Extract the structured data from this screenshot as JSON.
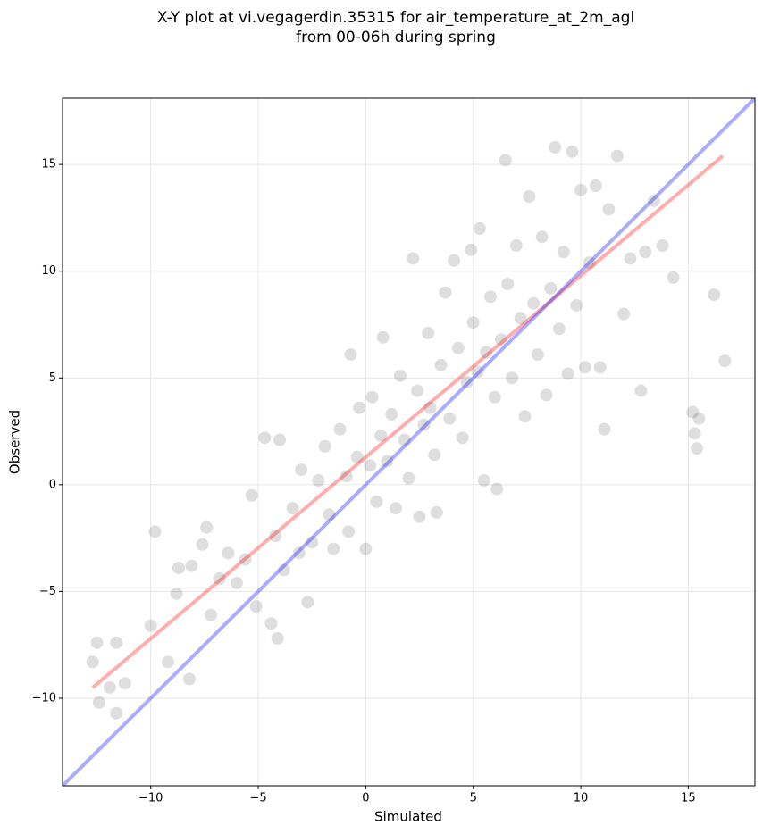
{
  "chart_data": {
    "type": "scatter",
    "title": "X-Y plot at vi.vegagerdin.35315 for air_temperature_at_2m_agl",
    "subtitle": "from 00-06h during spring",
    "x_label": "Simulated",
    "y_label": "Observed",
    "xlim": [
      -14.1,
      18.1
    ],
    "ylim": [
      -14.1,
      18.1
    ],
    "xticks": [
      {
        "value": -10,
        "label": "−10"
      },
      {
        "value": -5,
        "label": "−5"
      },
      0,
      5,
      10,
      15
    ],
    "yticks": [
      {
        "value": -10,
        "label": "−10"
      },
      {
        "value": -5,
        "label": "−5"
      },
      0,
      5,
      10,
      15
    ],
    "grid": true,
    "series": [
      {
        "color": "#000000",
        "opacity": 0.13,
        "x": [
          -12.7,
          -12.5,
          -12.4,
          -11.9,
          -11.6,
          -11.6,
          -11.2,
          -9.8,
          -10,
          -9.2,
          -8.8,
          -8.7,
          -8.2,
          -8.1,
          -7.6,
          -7.4,
          -7.2,
          -6.8,
          -6.4,
          -6.0,
          -5.6,
          -5.3,
          -5.1,
          -4.7,
          -4.4,
          -4.2,
          -4.0,
          -4.1,
          -3.8,
          -3.4,
          -3.1,
          -3.0,
          -2.7,
          -2.5,
          -2.2,
          -1.9,
          -1.7,
          -1.5,
          -1.2,
          -0.9,
          -0.8,
          -0.7,
          -0.4,
          -0.3,
          0,
          0.2,
          0.3,
          0.5,
          0.7,
          0.8,
          1.0,
          1.2,
          1.4,
          1.6,
          1.8,
          2.0,
          2.2,
          2.4,
          2.5,
          2.7,
          2.9,
          3.0,
          3.2,
          3.3,
          3.5,
          3.7,
          3.9,
          4.1,
          4.3,
          4.5,
          4.7,
          4.9,
          5.0,
          5.2,
          5.3,
          5.5,
          5.6,
          5.8,
          6.0,
          6.1,
          6.3,
          6.5,
          6.6,
          6.8,
          7.0,
          7.2,
          7.4,
          7.6,
          7.8,
          8.0,
          8.2,
          8.4,
          8.6,
          8.8,
          9.0,
          9.2,
          9.4,
          9.6,
          9.8,
          10.0,
          10.2,
          10.4,
          10.7,
          10.9,
          11.1,
          11.3,
          11.7,
          12.0,
          12.3,
          12.8,
          13.0,
          13.4,
          13.8,
          14.3,
          15.2,
          15.4,
          15.3,
          15.5,
          16.2,
          16.7
        ],
        "values": [
          -8.3,
          -7.4,
          -10.2,
          -9.5,
          -10.7,
          -7.4,
          -9.3,
          -2.2,
          -6.6,
          -8.3,
          -5.1,
          -3.9,
          -9.1,
          -3.8,
          -2.8,
          -2.0,
          -6.1,
          -4.4,
          -3.2,
          -4.6,
          -3.5,
          -0.5,
          -5.7,
          2.2,
          -6.5,
          -2.4,
          2.1,
          -7.2,
          -4.0,
          -1.1,
          -3.2,
          0.7,
          -5.5,
          -2.7,
          0.2,
          1.8,
          -1.4,
          -3.0,
          2.6,
          0.4,
          -2.2,
          6.1,
          1.3,
          3.6,
          -3.0,
          0.9,
          4.1,
          -0.8,
          2.3,
          6.9,
          1.1,
          3.3,
          -1.1,
          5.1,
          2.1,
          0.3,
          10.6,
          4.4,
          -1.5,
          2.8,
          7.1,
          3.6,
          1.4,
          -1.3,
          5.6,
          9.0,
          3.1,
          10.5,
          6.4,
          2.2,
          4.8,
          11.0,
          7.6,
          5.3,
          12.0,
          0.2,
          6.2,
          8.8,
          4.1,
          -0.2,
          6.8,
          15.2,
          9.4,
          5.0,
          11.2,
          7.8,
          3.2,
          13.5,
          8.5,
          6.1,
          11.6,
          4.2,
          9.2,
          15.8,
          7.3,
          10.9,
          5.2,
          15.6,
          8.4,
          13.8,
          5.5,
          10.4,
          14.0,
          5.5,
          2.6,
          12.9,
          15.4,
          8.0,
          10.6,
          4.4,
          10.9,
          13.3,
          11.2,
          9.7,
          3.4,
          1.7,
          2.4,
          3.1,
          8.9,
          5.8
        ]
      }
    ],
    "lines": [
      {
        "color": "#ff0000",
        "opacity": 0.32,
        "x": [
          -12.7,
          16.6
        ],
        "values": [
          -9.5,
          15.4
        ]
      },
      {
        "color": "#0000ff",
        "opacity": 0.33,
        "x": [
          -14.1,
          18.1
        ],
        "values": [
          -14.1,
          18.1
        ]
      }
    ]
  }
}
